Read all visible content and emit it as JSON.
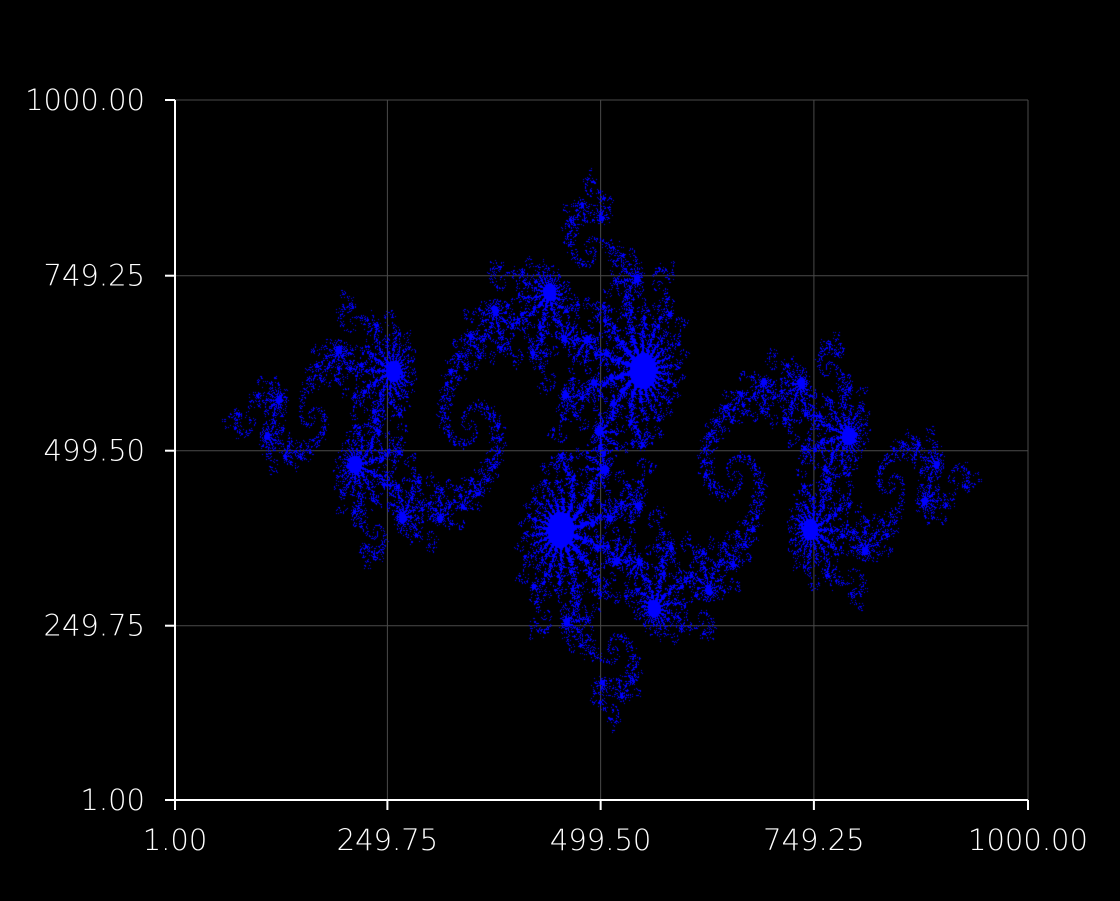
{
  "chart_data": {
    "type": "scatter",
    "title": "",
    "xlabel": "",
    "ylabel": "",
    "xlim": [
      1.0,
      1000.0
    ],
    "ylim": [
      1.0,
      1000.0
    ],
    "x_ticks": [
      "1.00",
      "249.75",
      "499.50",
      "749.25",
      "1000.00"
    ],
    "y_ticks": [
      "1.00",
      "249.75",
      "499.50",
      "749.25",
      "1000.00"
    ],
    "x_tick_values": [
      1.0,
      249.75,
      499.5,
      749.25,
      1000.0
    ],
    "y_tick_values": [
      1.0,
      249.75,
      499.5,
      749.25,
      1000.0
    ],
    "grid": true,
    "legend": "none",
    "series": [
      {
        "marker_color": "#0000ff",
        "description_points": "filled Julia-set fractal point cloud",
        "julia_c": [
          -0.8,
          0.156
        ],
        "complex_bounds": {
          "re": [
            -1.7,
            1.7
          ],
          "im": [
            -1.05,
            1.05
          ]
        }
      }
    ]
  },
  "colors": {
    "background": "#000000",
    "axis": "#ffffff",
    "grid": "#4a4a4a",
    "points": "#0000ff"
  }
}
